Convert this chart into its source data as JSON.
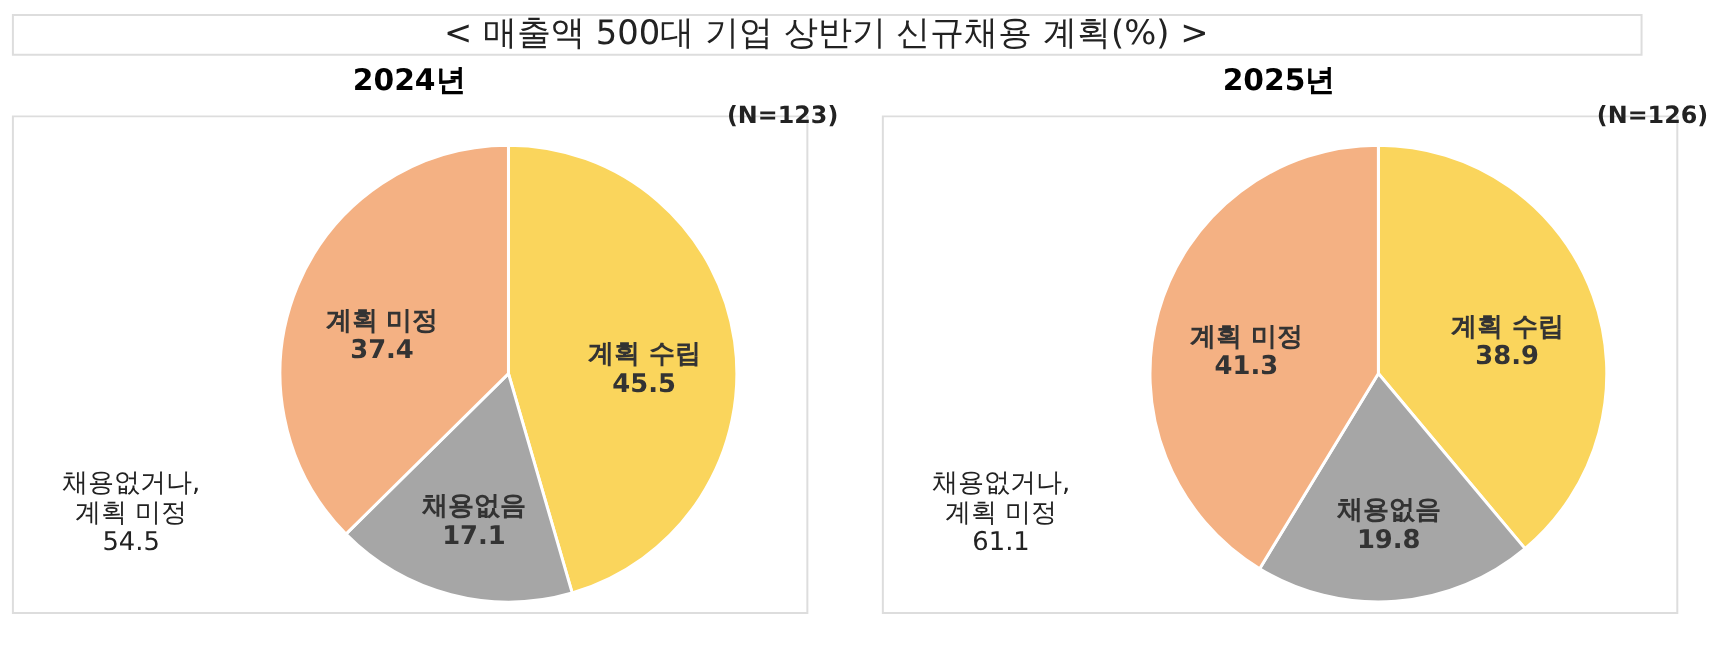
{
  "chart_data": [
    {
      "type": "other",
      "title": "< 매출액 500대 기업 상반기 신규채용 계획(%) >"
    },
    {
      "type": "pie",
      "title": "2024년",
      "categories": [
        "계획 수립",
        "채용없음",
        "계획 미정"
      ],
      "values": [
        45.5,
        17.1,
        37.4
      ],
      "colors": [
        "#fad55c",
        "#a6a6a6",
        "#f4b183"
      ],
      "data_labels": true,
      "annotations": [
        "(N=123)",
        "채용없거나,\n계획 미정\n54.5"
      ]
    },
    {
      "type": "pie",
      "title": "2025년",
      "categories": [
        "계획 수립",
        "채용없음",
        "계획 미정"
      ],
      "values": [
        38.9,
        19.8,
        41.3
      ],
      "colors": [
        "#fad55c",
        "#a6a6a6",
        "#f4b183"
      ],
      "data_labels": true,
      "annotations": [
        "(N=126)",
        "채용없거나,\n계획 미정\n61.1"
      ]
    }
  ]
}
